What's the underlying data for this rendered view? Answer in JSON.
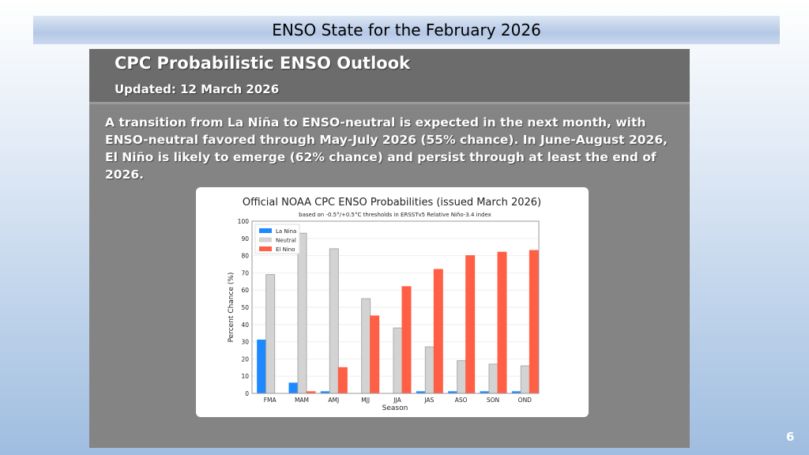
{
  "slide_title": "ENSO State for the February 2026",
  "header": {
    "title": "CPC Probabilistic ENSO Outlook",
    "updated": "Updated:  12 March 2026"
  },
  "body_text": "A transition from La Niña to ENSO-neutral is expected in the next month, with ENSO-neutral favored through May-July 2026 (55% chance).  In June-August 2026, El Niño is likely to emerge (62% chance) and persist through at least the end of 2026.",
  "page_number": "6",
  "chart_data": {
    "type": "bar",
    "title": "Official NOAA CPC ENSO Probabilities (issued March 2026)",
    "subtitle": "based on -0.5°/+0.5°C thresholds in ERSSTv5 Relative Niño-3.4 index",
    "xlabel": "Season",
    "ylabel": "Percent Chance (%)",
    "ylim": [
      0,
      100
    ],
    "yticks": [
      0,
      10,
      20,
      30,
      40,
      50,
      60,
      70,
      80,
      90,
      100
    ],
    "legend_position": "top-left",
    "grid": true,
    "categories": [
      "FMA",
      "MAM",
      "AMJ",
      "MJJ",
      "JJA",
      "JAS",
      "ASO",
      "SON",
      "OND"
    ],
    "series": [
      {
        "name": "La Nina",
        "color": "#1e88ff",
        "values": [
          31,
          6,
          1,
          0,
          0,
          1,
          1,
          1,
          1
        ]
      },
      {
        "name": "Neutral",
        "color": "#d3d3d3",
        "values": [
          69,
          93,
          84,
          55,
          38,
          27,
          19,
          17,
          16
        ]
      },
      {
        "name": "El Nino",
        "color": "#ff5f45",
        "values": [
          0,
          1,
          15,
          45,
          62,
          72,
          80,
          82,
          83
        ]
      }
    ]
  }
}
